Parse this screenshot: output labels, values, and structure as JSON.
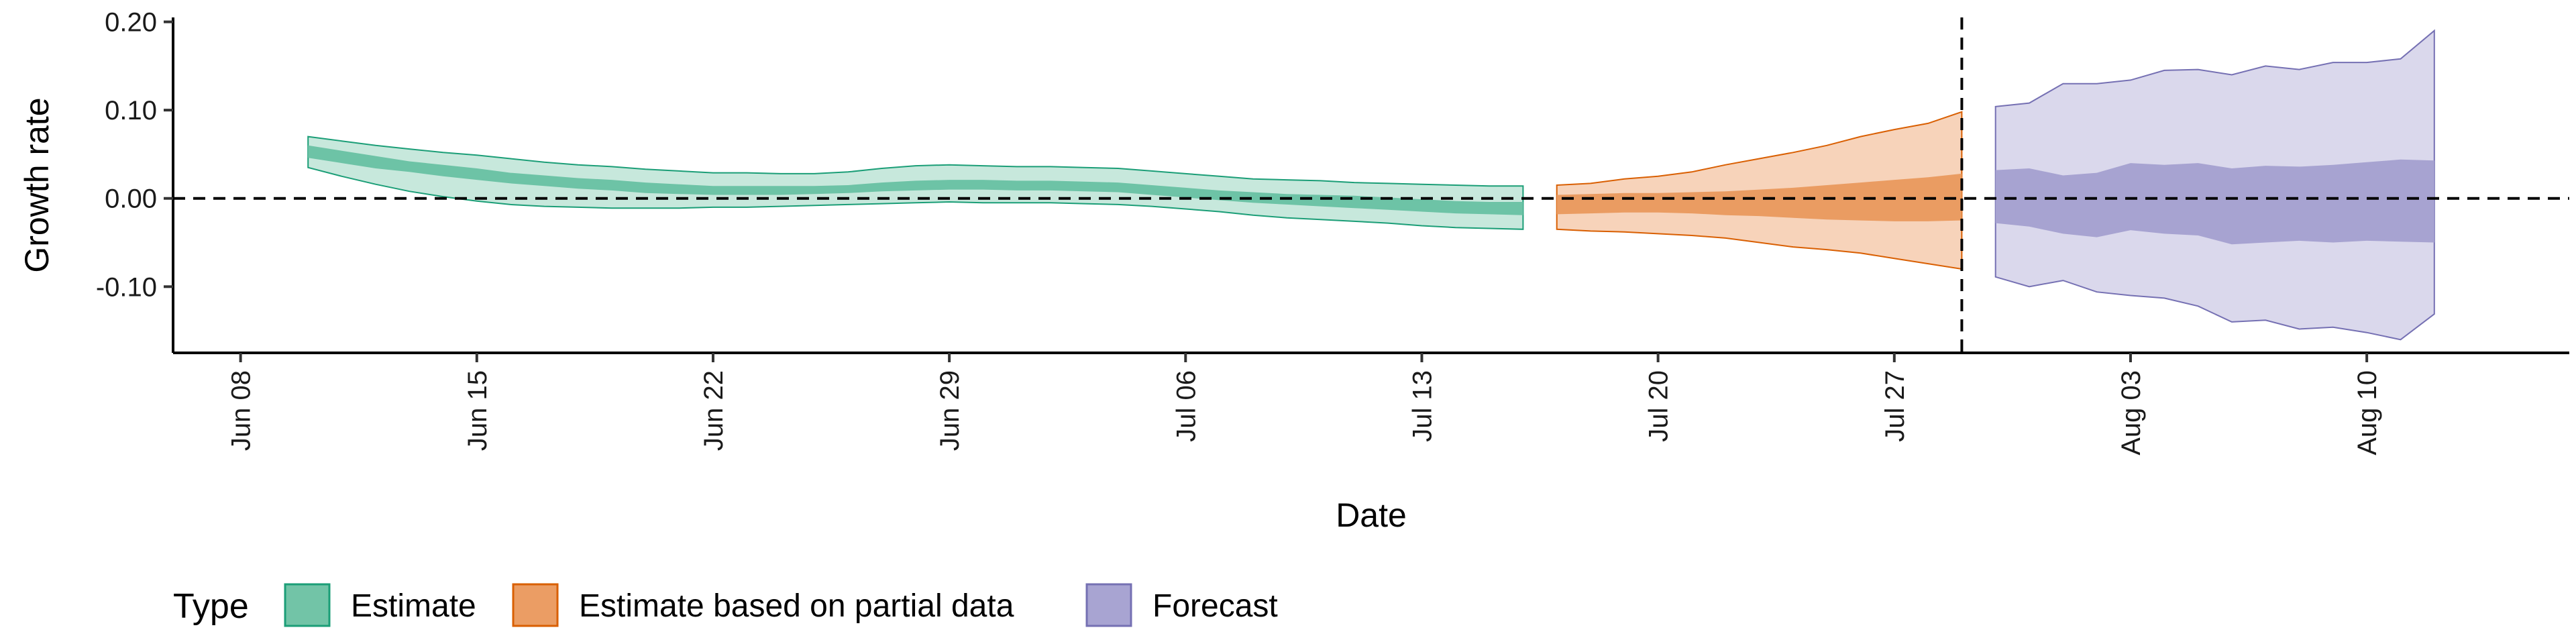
{
  "chart_data": {
    "type": "area",
    "xlabel": "Date",
    "ylabel": "Growth rate",
    "x_range": [
      "2020-06-06",
      "2020-08-16"
    ],
    "ylim": [
      -0.175,
      0.205
    ],
    "y_ticks": [
      -0.1,
      0.0,
      0.1,
      0.2
    ],
    "y_tick_labels": [
      "-0.10",
      "0.00",
      "0.10",
      "0.20"
    ],
    "x_ticks": [
      "2020-06-08",
      "2020-06-15",
      "2020-06-22",
      "2020-06-29",
      "2020-07-06",
      "2020-07-13",
      "2020-07-20",
      "2020-07-27",
      "2020-08-03",
      "2020-08-10"
    ],
    "x_tick_labels": [
      "Jun 08",
      "Jun 15",
      "Jun 22",
      "Jun 29",
      "Jul 06",
      "Jul 13",
      "Jul 20",
      "Jul 27",
      "Aug 03",
      "Aug 10"
    ],
    "grid": false,
    "reference_lines": {
      "horizontal_y": 0.0,
      "vertical_x": "2020-07-29"
    },
    "legend": {
      "title": "Type",
      "placement": "bottom",
      "entries": [
        "Estimate",
        "Estimate based on partial data",
        "Forecast"
      ]
    },
    "series": [
      {
        "name": "Estimate",
        "color": "#1b9e77",
        "fill_outer": "#c7e8dc",
        "fill_inner": "#6dc3a6",
        "dates": [
          "2020-06-10",
          "2020-06-11",
          "2020-06-12",
          "2020-06-13",
          "2020-06-14",
          "2020-06-15",
          "2020-06-16",
          "2020-06-17",
          "2020-06-18",
          "2020-06-19",
          "2020-06-20",
          "2020-06-21",
          "2020-06-22",
          "2020-06-23",
          "2020-06-24",
          "2020-06-25",
          "2020-06-26",
          "2020-06-27",
          "2020-06-28",
          "2020-06-29",
          "2020-06-30",
          "2020-07-01",
          "2020-07-02",
          "2020-07-03",
          "2020-07-04",
          "2020-07-05",
          "2020-07-06",
          "2020-07-07",
          "2020-07-08",
          "2020-07-09",
          "2020-07-10",
          "2020-07-11",
          "2020-07-12",
          "2020-07-13",
          "2020-07-14",
          "2020-07-15",
          "2020-07-16"
        ],
        "upper90": [
          0.07,
          0.065,
          0.06,
          0.056,
          0.052,
          0.049,
          0.045,
          0.041,
          0.038,
          0.036,
          0.033,
          0.031,
          0.029,
          0.029,
          0.028,
          0.028,
          0.03,
          0.034,
          0.037,
          0.038,
          0.037,
          0.036,
          0.036,
          0.035,
          0.034,
          0.031,
          0.028,
          0.025,
          0.022,
          0.021,
          0.02,
          0.018,
          0.017,
          0.016,
          0.015,
          0.014,
          0.014
        ],
        "upper50": [
          0.06,
          0.054,
          0.048,
          0.042,
          0.038,
          0.034,
          0.029,
          0.026,
          0.023,
          0.021,
          0.018,
          0.016,
          0.014,
          0.014,
          0.014,
          0.014,
          0.015,
          0.018,
          0.02,
          0.021,
          0.021,
          0.02,
          0.02,
          0.019,
          0.018,
          0.015,
          0.012,
          0.009,
          0.007,
          0.005,
          0.004,
          0.003,
          0.001,
          -0.001,
          -0.003,
          -0.004,
          -0.004
        ],
        "lower50": [
          0.046,
          0.04,
          0.034,
          0.03,
          0.025,
          0.021,
          0.017,
          0.014,
          0.011,
          0.009,
          0.006,
          0.005,
          0.004,
          0.004,
          0.004,
          0.005,
          0.006,
          0.008,
          0.009,
          0.01,
          0.01,
          0.009,
          0.009,
          0.008,
          0.007,
          0.004,
          0.001,
          -0.002,
          -0.005,
          -0.007,
          -0.009,
          -0.011,
          -0.013,
          -0.015,
          -0.017,
          -0.018,
          -0.019
        ],
        "lower90": [
          0.035,
          0.025,
          0.016,
          0.008,
          0.002,
          -0.003,
          -0.007,
          -0.009,
          -0.01,
          -0.011,
          -0.011,
          -0.011,
          -0.01,
          -0.01,
          -0.009,
          -0.008,
          -0.007,
          -0.006,
          -0.005,
          -0.004,
          -0.005,
          -0.005,
          -0.005,
          -0.006,
          -0.007,
          -0.009,
          -0.012,
          -0.015,
          -0.019,
          -0.022,
          -0.024,
          -0.026,
          -0.028,
          -0.031,
          -0.033,
          -0.034,
          -0.035
        ]
      },
      {
        "name": "Estimate based on partial data",
        "color": "#d95f02",
        "fill_outer": "#f7d3ba",
        "fill_inner": "#ea9c62",
        "dates": [
          "2020-07-17",
          "2020-07-18",
          "2020-07-19",
          "2020-07-20",
          "2020-07-21",
          "2020-07-22",
          "2020-07-23",
          "2020-07-24",
          "2020-07-25",
          "2020-07-26",
          "2020-07-27",
          "2020-07-28",
          "2020-07-29"
        ],
        "upper90": [
          0.015,
          0.017,
          0.022,
          0.025,
          0.03,
          0.038,
          0.045,
          0.052,
          0.06,
          0.07,
          0.078,
          0.085,
          0.098
        ],
        "upper50": [
          0.004,
          0.005,
          0.006,
          0.006,
          0.007,
          0.008,
          0.01,
          0.012,
          0.015,
          0.018,
          0.021,
          0.024,
          0.028
        ],
        "lower50": [
          -0.018,
          -0.017,
          -0.016,
          -0.016,
          -0.017,
          -0.019,
          -0.02,
          -0.022,
          -0.024,
          -0.025,
          -0.026,
          -0.026,
          -0.025
        ],
        "lower90": [
          -0.035,
          -0.037,
          -0.038,
          -0.04,
          -0.042,
          -0.045,
          -0.05,
          -0.055,
          -0.058,
          -0.062,
          -0.068,
          -0.074,
          -0.08
        ]
      },
      {
        "name": "Forecast",
        "color": "#7570b3",
        "fill_outer": "#dad8ec",
        "fill_inner": "#a7a3d1",
        "dates": [
          "2020-07-30",
          "2020-07-31",
          "2020-08-01",
          "2020-08-02",
          "2020-08-03",
          "2020-08-04",
          "2020-08-05",
          "2020-08-06",
          "2020-08-07",
          "2020-08-08",
          "2020-08-09",
          "2020-08-10",
          "2020-08-11",
          "2020-08-12"
        ],
        "upper90": [
          0.104,
          0.108,
          0.13,
          0.13,
          0.134,
          0.145,
          0.146,
          0.14,
          0.15,
          0.146,
          0.154,
          0.154,
          0.158,
          0.19
        ],
        "upper50": [
          0.032,
          0.034,
          0.026,
          0.029,
          0.04,
          0.038,
          0.04,
          0.034,
          0.037,
          0.036,
          0.038,
          0.041,
          0.044,
          0.043
        ],
        "lower50": [
          -0.028,
          -0.032,
          -0.04,
          -0.044,
          -0.036,
          -0.04,
          -0.042,
          -0.052,
          -0.05,
          -0.048,
          -0.05,
          -0.048,
          -0.049,
          -0.05
        ],
        "lower90": [
          -0.089,
          -0.1,
          -0.093,
          -0.106,
          -0.11,
          -0.113,
          -0.122,
          -0.14,
          -0.138,
          -0.148,
          -0.146,
          -0.152,
          -0.16,
          -0.131
        ]
      }
    ]
  }
}
